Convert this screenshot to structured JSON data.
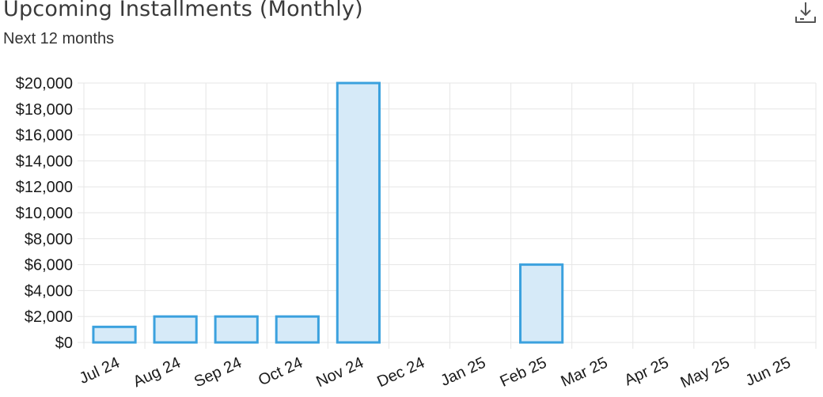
{
  "header": {
    "title": "Upcoming Installments (Monthly)",
    "subtitle": "Next 12 months"
  },
  "toolbar": {
    "download_icon": "download-icon"
  },
  "colors": {
    "bar_fill": "#d6eaf8",
    "bar_stroke": "#3ba1de",
    "grid": "#e6e6e6",
    "axis_text": "#1a1a1a"
  },
  "chart_data": {
    "type": "bar",
    "categories": [
      "Jul 24",
      "Aug 24",
      "Sep 24",
      "Oct 24",
      "Nov 24",
      "Dec 24",
      "Jan 25",
      "Feb 25",
      "Mar 25",
      "Apr 25",
      "May 25",
      "Jun 25"
    ],
    "values": [
      1200,
      2000,
      2000,
      2000,
      20000,
      0,
      0,
      6000,
      0,
      0,
      0,
      0
    ],
    "ylim": [
      0,
      20000
    ],
    "yticks": [
      0,
      2000,
      4000,
      6000,
      8000,
      10000,
      12000,
      14000,
      16000,
      18000,
      20000
    ],
    "ytick_labels": [
      "$0",
      "$2,000",
      "$4,000",
      "$6,000",
      "$8,000",
      "$10,000",
      "$12,000",
      "$14,000",
      "$16,000",
      "$18,000",
      "$20,000"
    ],
    "grid": true,
    "legend": "none"
  }
}
